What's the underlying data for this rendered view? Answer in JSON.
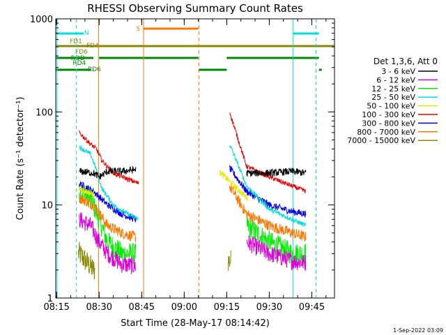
{
  "chart_data": {
    "type": "line",
    "title": "RHESSI Observing Summary Count Rates",
    "xlabel": "Start Time (28-May-17 08:14:42)",
    "ylabel": "Count Rate (s⁻¹ detector⁻¹)",
    "y_scale": "log",
    "ylim": [
      1,
      1000
    ],
    "xlim": [
      "08:14:42",
      "09:53:00"
    ],
    "x_ticks": [
      "08:15",
      "08:30",
      "08:45",
      "09:00",
      "09:15",
      "09:30",
      "09:45"
    ],
    "y_ticks": [
      "1",
      "10",
      "100",
      "1000"
    ],
    "legend_title": "Det 1,3,6, Att 0",
    "legend_position": "right",
    "series": [
      {
        "name": "3 - 6 keV",
        "color": "#000000",
        "points": [
          [
            "08:23:00",
            23
          ],
          [
            "08:28:00",
            22
          ],
          [
            "08:30:00",
            20
          ],
          [
            "08:33:00",
            23
          ],
          [
            "08:38:00",
            23
          ],
          [
            "08:43:00",
            24
          ],
          [
            "09:22:00",
            22
          ],
          [
            "09:30:00",
            22
          ],
          [
            "09:38:00",
            23
          ],
          [
            "09:43:00",
            22
          ]
        ]
      },
      {
        "name": "6 - 12 keV",
        "color": "#dd00dd",
        "points": [
          [
            "08:23:00",
            7
          ],
          [
            "08:27:00",
            6
          ],
          [
            "08:30:00",
            4
          ],
          [
            "08:33:00",
            3
          ],
          [
            "08:38:00",
            2.3
          ],
          [
            "08:43:00",
            2.2
          ],
          [
            "09:22:00",
            4
          ],
          [
            "09:30:00",
            3
          ],
          [
            "09:38:00",
            2.5
          ],
          [
            "09:43:00",
            2.4
          ]
        ]
      },
      {
        "name": "12 - 25 keV",
        "color": "#00ee00",
        "points": [
          [
            "08:23:00",
            14
          ],
          [
            "08:27:00",
            12
          ],
          [
            "08:30:00",
            7
          ],
          [
            "08:33:00",
            4
          ],
          [
            "08:38:00",
            3
          ],
          [
            "08:43:00",
            3
          ],
          [
            "09:22:00",
            6
          ],
          [
            "09:30:00",
            4
          ],
          [
            "09:38:00",
            3
          ],
          [
            "09:43:00",
            3
          ]
        ]
      },
      {
        "name": "25 - 50 keV",
        "color": "#00dddd",
        "points": [
          [
            "08:23:00",
            42
          ],
          [
            "08:27:00",
            35
          ],
          [
            "08:29:00",
            24
          ],
          [
            "08:31:00",
            15
          ],
          [
            "08:35:00",
            10
          ],
          [
            "08:40:00",
            8
          ],
          [
            "08:44:00",
            7
          ],
          [
            "09:16:00",
            45
          ],
          [
            "09:22:00",
            16
          ],
          [
            "09:30:00",
            9
          ],
          [
            "09:38:00",
            7
          ],
          [
            "09:43:00",
            6
          ]
        ]
      },
      {
        "name": "50 - 100 keV",
        "color": "#e8e800",
        "points": [
          [
            "08:23:00",
            15
          ],
          [
            "08:28:00",
            13
          ],
          [
            "09:13:00",
            22
          ],
          [
            "09:22:00",
            12
          ]
        ]
      },
      {
        "name": "100 - 300 keV",
        "color": "#ee0000",
        "points": [
          [
            "08:23:00",
            60
          ],
          [
            "08:27:00",
            45
          ],
          [
            "08:29:00",
            40
          ],
          [
            "08:31:00",
            30
          ],
          [
            "08:35:00",
            22
          ],
          [
            "08:40:00",
            19
          ],
          [
            "08:44:00",
            17
          ],
          [
            "09:16:00",
            100
          ],
          [
            "09:22:00",
            26
          ],
          [
            "09:30:00",
            20
          ],
          [
            "09:38:00",
            16
          ],
          [
            "09:43:00",
            14
          ]
        ]
      },
      {
        "name": "300 - 800 keV",
        "color": "#0000ee",
        "points": [
          [
            "08:23:00",
            17
          ],
          [
            "08:28:00",
            14
          ],
          [
            "08:33:00",
            10
          ],
          [
            "08:38:00",
            8
          ],
          [
            "08:43:00",
            7
          ],
          [
            "09:16:00",
            25
          ],
          [
            "09:22:00",
            14
          ],
          [
            "09:30:00",
            10
          ],
          [
            "09:38:00",
            8.5
          ],
          [
            "09:43:00",
            8
          ]
        ]
      },
      {
        "name": "800 - 7000 keV",
        "color": "#ff7700",
        "points": [
          [
            "08:23:00",
            12
          ],
          [
            "08:28:00",
            10
          ],
          [
            "08:33:00",
            6
          ],
          [
            "08:38:00",
            5
          ],
          [
            "08:43:00",
            4.5
          ],
          [
            "09:16:00",
            16
          ],
          [
            "09:22:00",
            8
          ],
          [
            "09:30:00",
            6
          ],
          [
            "09:38:00",
            5
          ],
          [
            "09:43:00",
            4.5
          ]
        ]
      },
      {
        "name": "7000 - 15000 keV",
        "color": "#888800",
        "points": [
          [
            "08:23:00",
            3
          ],
          [
            "08:28:00",
            2
          ],
          [
            "09:16:00",
            2.5
          ]
        ]
      }
    ],
    "flag_labels": [
      {
        "text": "N",
        "color": "#00dddd"
      },
      {
        "text": "S",
        "color": "#ff7700"
      },
      {
        "text": "FD1",
        "color": "#888800"
      },
      {
        "text": "FD4",
        "color": "#888800"
      },
      {
        "text": "FD6",
        "color": "#888800"
      },
      {
        "text": "RDD",
        "color": "#008800"
      },
      {
        "text": "RD4",
        "color": "#008800"
      },
      {
        "text": "RD6",
        "color": "#008800"
      }
    ],
    "footer_timestamp": "1-Sep-2022 03:09"
  }
}
